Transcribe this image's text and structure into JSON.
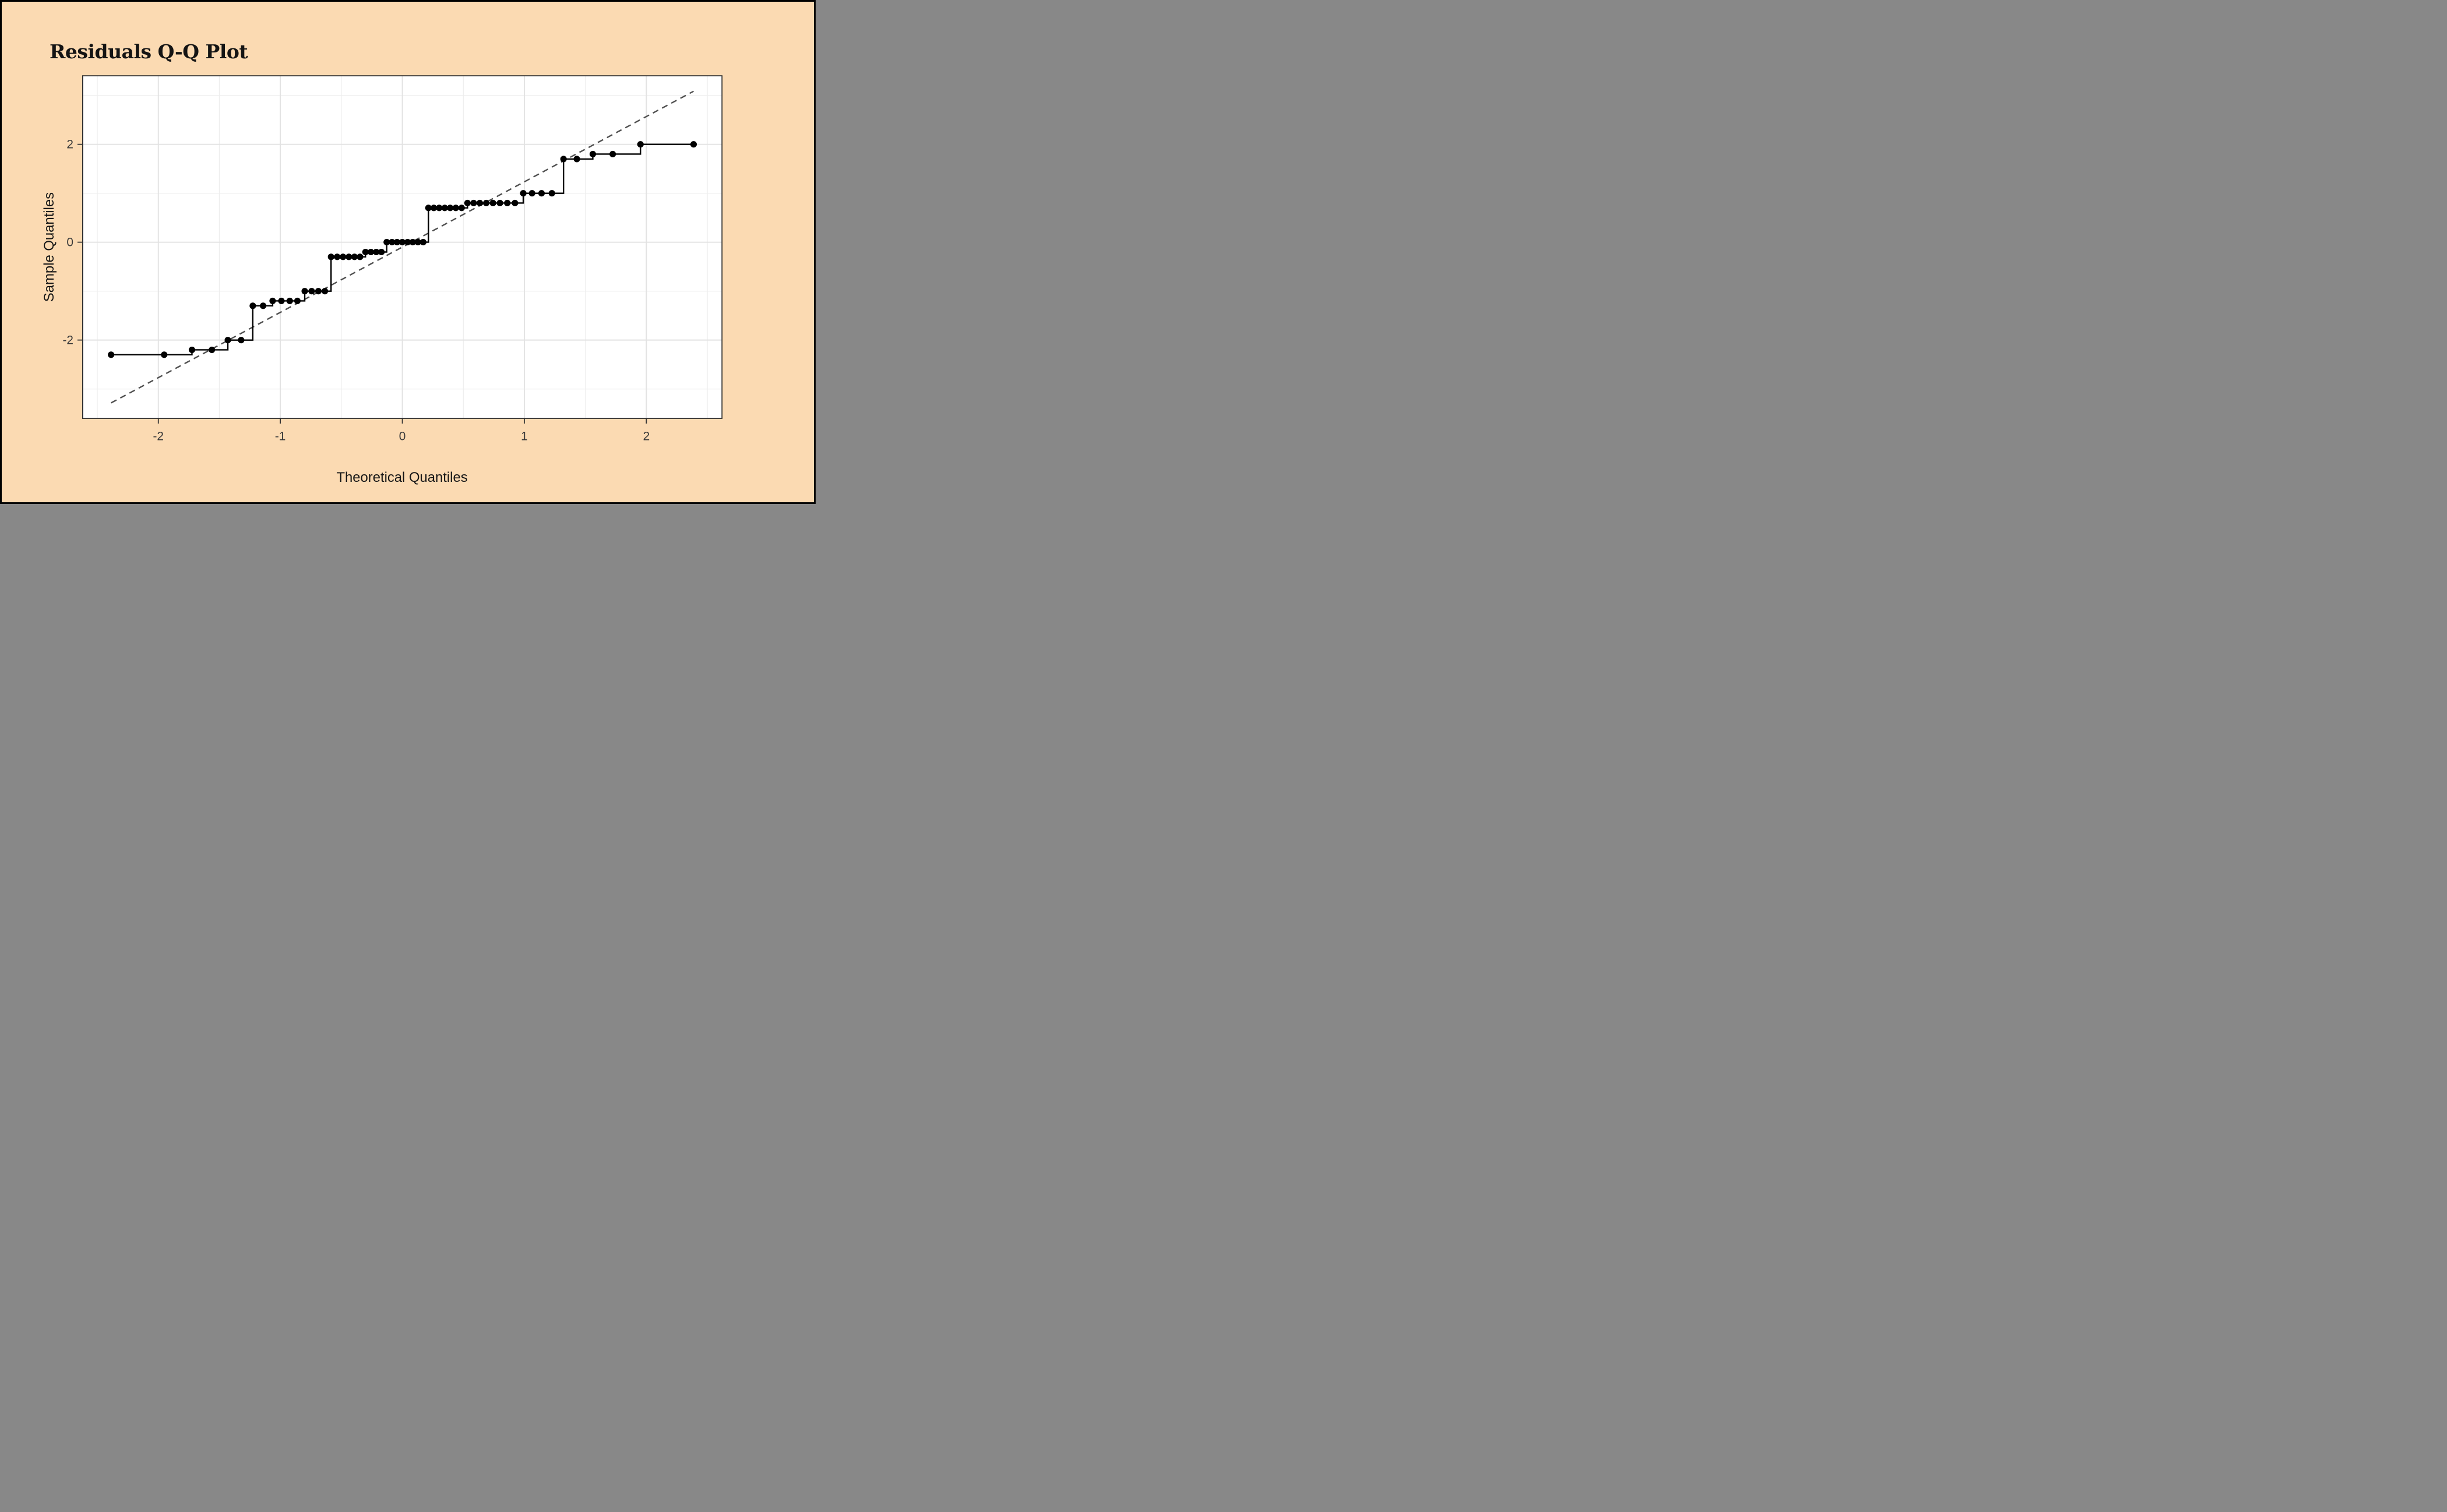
{
  "chart_data": {
    "type": "scatter",
    "subtype": "qq-plot-with-step-line",
    "title": "Residuals Q-Q Plot",
    "xlabel": "Theoretical Quantiles",
    "ylabel": "Sample Quantiles",
    "xlim": [
      -2.62,
      2.62
    ],
    "ylim": [
      -3.6,
      3.4
    ],
    "x_ticks": [
      -2,
      -1,
      0,
      1,
      2
    ],
    "y_ticks": [
      -2,
      0,
      2
    ],
    "x_minor": [
      -2.5,
      -1.5,
      -0.5,
      0.5,
      1.5,
      2.5
    ],
    "y_minor": [
      -3,
      -1,
      1,
      3
    ],
    "grid": true,
    "legend": "none",
    "n_points": 59,
    "x": [
      -2.387,
      -1.952,
      -1.724,
      -1.561,
      -1.43,
      -1.321,
      -1.226,
      -1.141,
      -1.063,
      -0.991,
      -0.923,
      -0.86,
      -0.8,
      -0.743,
      -0.688,
      -0.635,
      -0.584,
      -0.534,
      -0.486,
      -0.438,
      -0.392,
      -0.347,
      -0.302,
      -0.258,
      -0.214,
      -0.171,
      -0.128,
      -0.085,
      -0.043,
      0,
      0.043,
      0.085,
      0.128,
      0.171,
      0.214,
      0.258,
      0.302,
      0.347,
      0.392,
      0.438,
      0.486,
      0.534,
      0.584,
      0.635,
      0.688,
      0.743,
      0.8,
      0.86,
      0.923,
      0.991,
      1.063,
      1.141,
      1.226,
      1.321,
      1.43,
      1.561,
      1.724,
      1.952,
      2.387
    ],
    "y": [
      -2.3,
      -2.3,
      -2.2,
      -2.2,
      -2,
      -2,
      -1.3,
      -1.3,
      -1.2,
      -1.2,
      -1.2,
      -1.2,
      -1,
      -1,
      -1,
      -1,
      -0.3,
      -0.3,
      -0.3,
      -0.3,
      -0.3,
      -0.3,
      -0.2,
      -0.2,
      -0.2,
      -0.2,
      0,
      0,
      0,
      0,
      0,
      0,
      0,
      0,
      0.7,
      0.7,
      0.7,
      0.7,
      0.7,
      0.7,
      0.7,
      0.8,
      0.8,
      0.8,
      0.8,
      0.8,
      0.8,
      0.8,
      0.8,
      1,
      1,
      1,
      1,
      1.7,
      1.7,
      1.8,
      1.8,
      2,
      2
    ],
    "qq_line": {
      "slope": 1.334,
      "intercept": -0.1,
      "x_start": -2.387,
      "x_end": 2.387
    },
    "colors": {
      "page_background": "#FBDAB2",
      "frame": "#000000",
      "panel_background": "#FFFFFF",
      "panel_border": "#2E2E2E",
      "grid_major": "#E2E2E2",
      "grid_minor": "#EDEDED",
      "points_and_step": "#000000",
      "reference_line": "#4F4F4F",
      "tick_text": "#3A3A3A",
      "title_text": "#141414"
    }
  }
}
